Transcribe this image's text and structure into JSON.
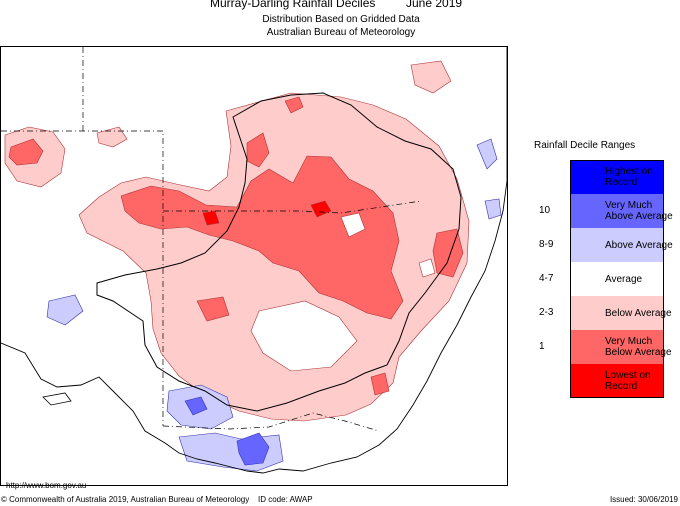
{
  "title": {
    "main": "Murray-Darling Rainfall Deciles",
    "date": "June 2019"
  },
  "subtitle": {
    "line1": "Distribution Based on Gridded Data",
    "line2": "Australian Bureau of Meteorology"
  },
  "legend": {
    "title": "Rainfall Decile Ranges",
    "items": [
      {
        "code": "",
        "label": "Highest on\nRecord",
        "color": "#0000ff"
      },
      {
        "code": "10",
        "label": "Very Much\nAbove Average",
        "color": "#6666ff"
      },
      {
        "code": "8-9",
        "label": "Above Average",
        "color": "#ccccff"
      },
      {
        "code": "4-7",
        "label": "Average",
        "color": "#ffffff"
      },
      {
        "code": "2-3",
        "label": "Below Average",
        "color": "#ffcccc"
      },
      {
        "code": "1",
        "label": "Very Much\nBelow Average",
        "color": "#ff6666"
      },
      {
        "code": "",
        "label": "Lowest on\nRecord",
        "color": "#ff0000"
      }
    ]
  },
  "footer": {
    "url": "http://www.bom.gov.au",
    "copyright": "© Commonwealth of Australia 2019, Australian Bureau of Meteorology",
    "id_code": "ID code: AWAP",
    "issued": "Issued: 30/06/2019"
  }
}
